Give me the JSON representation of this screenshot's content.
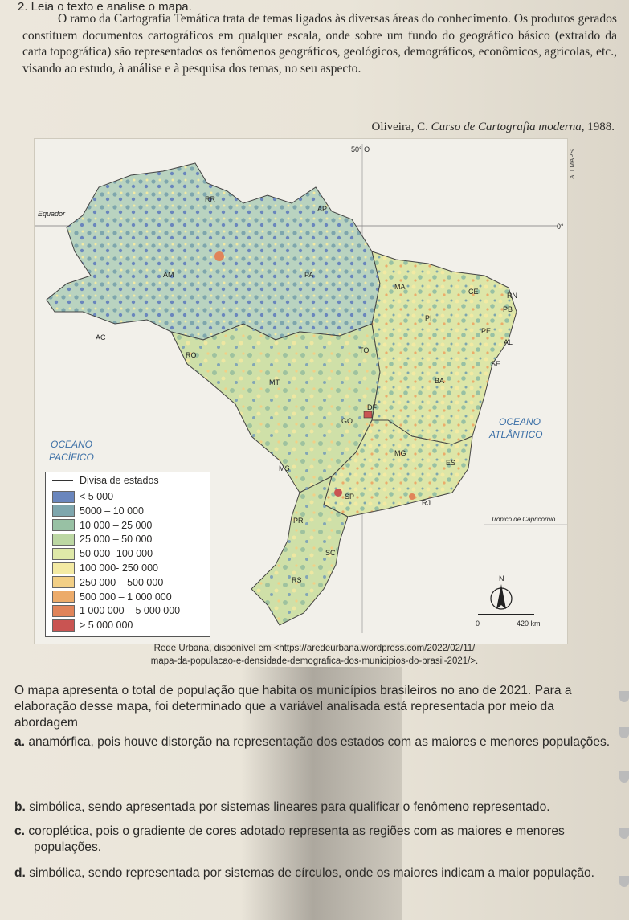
{
  "question_header": "2. Leia o texto e analise o mapa.",
  "intro_text": "O ramo da Cartografia Temática trata de temas ligados às diversas áreas do conhecimento. Os produtos gerados constituem documentos cartográficos em qualquer escala, onde sobre um fundo do geográfico básico (extraído da carta topográfica) são representados os fenômenos geográficos, geológicos, demográficos, econômicos, agrícolas, etc., visando ao estudo, à análise e à pesquisa dos temas, no seu aspecto.",
  "citation": {
    "author": "Oliveira, C. ",
    "work": "Curso de Cartografia moderna",
    "year": ", 1988."
  },
  "map": {
    "credit": "ALLMAPS",
    "meridian_label": "50° O",
    "equator_label": "Equador",
    "equator_degree": "0°",
    "tropic_label": "Trópico de Capricórnio",
    "ocean_atlantic": [
      "OCEANO",
      "ATLÂNTICO"
    ],
    "ocean_pacific": [
      "OCEANO",
      "PACÍFICO"
    ],
    "north": "N",
    "scale": {
      "start": "0",
      "end": "420 km"
    },
    "states": [
      "RR",
      "AP",
      "AM",
      "PA",
      "MA",
      "CE",
      "RN",
      "PB",
      "PI",
      "PE",
      "AL",
      "SE",
      "AC",
      "RO",
      "TO",
      "MT",
      "BA",
      "DF",
      "GO",
      "MG",
      "ES",
      "MS",
      "SP",
      "RJ",
      "PR",
      "SC",
      "RS"
    ],
    "legend": {
      "border_label": "Divisa de estados",
      "classes": [
        {
          "label": "< 5 000",
          "color": "#6a86bd"
        },
        {
          "label": "5000 – 10 000",
          "color": "#7ea6ad"
        },
        {
          "label": "10 000 – 25 000",
          "color": "#98c1a4"
        },
        {
          "label": "25 000 – 50 000",
          "color": "#bcd7a3"
        },
        {
          "label": "50 000- 100 000",
          "color": "#dfe9a8"
        },
        {
          "label": "100 000- 250 000",
          "color": "#f3eaa3"
        },
        {
          "label": "250 000 – 500 000",
          "color": "#f2cf86"
        },
        {
          "label": "500 000 – 1 000 000",
          "color": "#ecab6a"
        },
        {
          "label": "1 000 000 – 5 000 000",
          "color": "#e0845a"
        },
        {
          "label": "> 5 000 000",
          "color": "#c95452"
        }
      ]
    }
  },
  "source_line1": "Rede Urbana, disponível em <https://aredeurbana.wordpress.com/2022/02/11/",
  "source_line2": "mapa-da-populacao-e-densidade-demografica-dos-municipios-do-brasil-2021/>.",
  "question_text": "O mapa apresenta o total de população que habita os municípios brasileiros no ano de 2021. Para a elaboração desse mapa, foi determinado que a variável analisada está representada por meio da abordagem",
  "options": [
    {
      "letter": "a.",
      "text": " anamórfica, pois houve distorção na representação dos estados com as maiores e menores populações."
    },
    {
      "letter": "b.",
      "text": " simbólica, sendo apresentada por sistemas lineares para qualificar o fenômeno representado."
    },
    {
      "letter": "c.",
      "text": " coroplética, pois o gradiente de cores adotado representa as regiões com as maiores e menores populações."
    },
    {
      "letter": "d.",
      "text": " simbólica, sendo representada por sistemas de círculos, onde os maiores indicam a maior população."
    }
  ]
}
